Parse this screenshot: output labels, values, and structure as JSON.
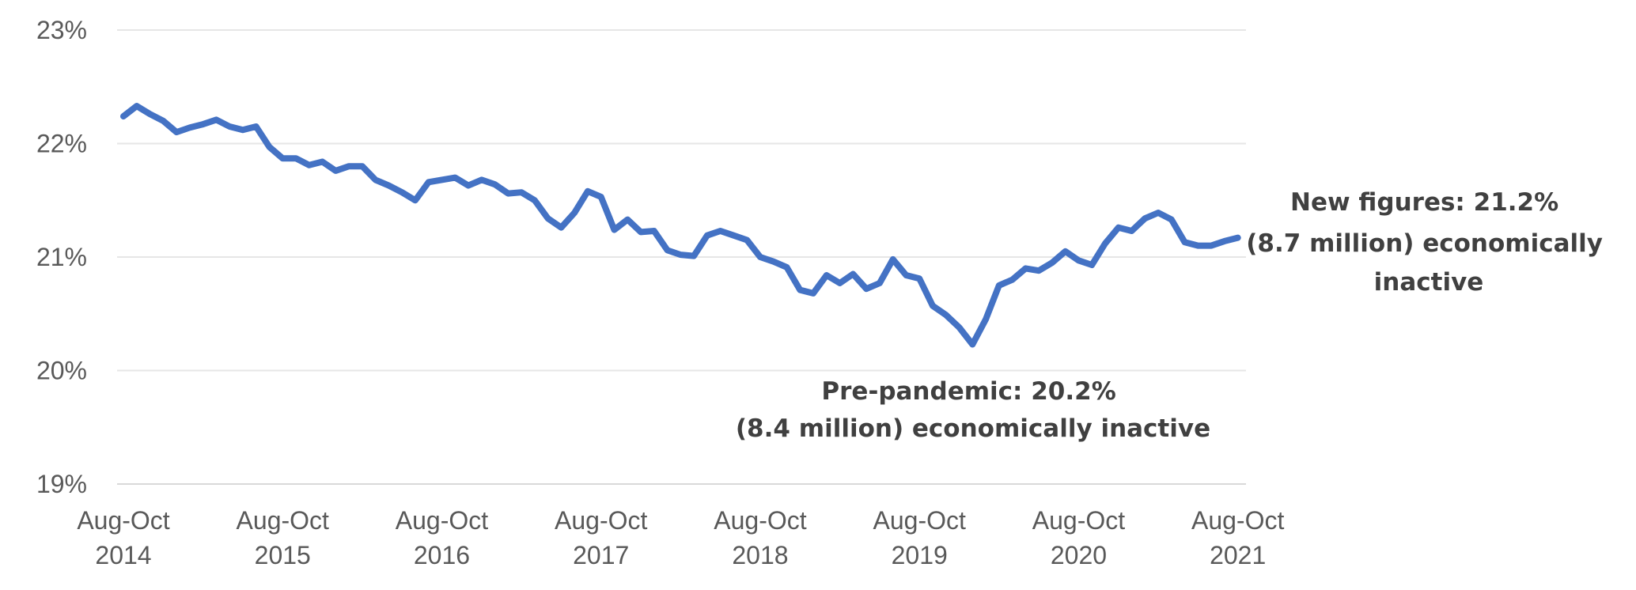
{
  "chart_data": {
    "type": "line",
    "title": "",
    "xlabel": "",
    "ylabel": "",
    "ylim": [
      19,
      23
    ],
    "y_ticks": [
      "19%",
      "20%",
      "21%",
      "22%",
      "23%"
    ],
    "y_tick_values": [
      19,
      20,
      21,
      22,
      23
    ],
    "x_ticks": [
      {
        "line1": "Aug-Oct",
        "line2": "2014",
        "index": 0
      },
      {
        "line1": "Aug-Oct",
        "line2": "2015",
        "index": 12
      },
      {
        "line1": "Aug-Oct",
        "line2": "2016",
        "index": 24
      },
      {
        "line1": "Aug-Oct",
        "line2": "2017",
        "index": 36
      },
      {
        "line1": "Aug-Oct",
        "line2": "2018",
        "index": 48
      },
      {
        "line1": "Aug-Oct",
        "line2": "2019",
        "index": 60
      },
      {
        "line1": "Aug-Oct",
        "line2": "2020",
        "index": 72
      },
      {
        "line1": "Aug-Oct",
        "line2": "2021",
        "index": 84
      }
    ],
    "grid": true,
    "legend": "none",
    "line_color": "#4472C4",
    "series": [
      {
        "values": [
          22.24,
          22.33,
          22.26,
          22.2,
          22.1,
          22.14,
          22.17,
          22.21,
          22.15,
          22.12,
          22.15,
          21.97,
          21.87,
          21.87,
          21.81,
          21.84,
          21.76,
          21.8,
          21.8,
          21.68,
          21.63,
          21.57,
          21.5,
          21.66,
          21.68,
          21.7,
          21.63,
          21.68,
          21.64,
          21.56,
          21.57,
          21.5,
          21.34,
          21.26,
          21.39,
          21.58,
          21.53,
          21.24,
          21.33,
          21.22,
          21.23,
          21.06,
          21.02,
          21.01,
          21.19,
          21.23,
          21.19,
          21.15,
          21.0,
          20.96,
          20.91,
          20.71,
          20.68,
          20.84,
          20.77,
          20.85,
          20.72,
          20.77,
          20.98,
          20.84,
          20.81,
          20.57,
          20.49,
          20.38,
          20.23,
          20.45,
          20.75,
          20.8,
          20.9,
          20.88,
          20.95,
          21.05,
          20.97,
          20.93,
          21.12,
          21.26,
          21.23,
          21.34,
          21.39,
          21.33,
          21.13,
          21.1,
          21.1,
          21.14,
          21.17
        ]
      }
    ],
    "annotations": [
      {
        "lines": [
          "Pre-pandemic: 20.2%",
          "(8.4 million) economically inactive"
        ]
      },
      {
        "lines": [
          "New figures: 21.2%",
          "(8.7 million) economically",
          "inactive"
        ]
      }
    ]
  }
}
